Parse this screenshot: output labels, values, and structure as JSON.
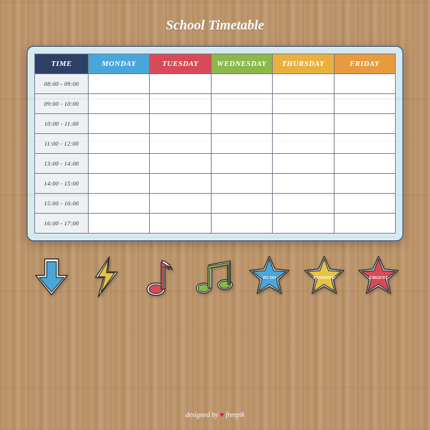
{
  "title": "School Timetable",
  "footer": {
    "prefix": "designed by",
    "heart": "♥",
    "brand": "freepik"
  },
  "colors": {
    "time_header_bg": "#2f4066",
    "day_header_bg": [
      "#4aa6d8",
      "#d84a57",
      "#8bb84a",
      "#e8b13f",
      "#e89a3f"
    ],
    "card_bg": "#d6e9f0",
    "card_border": "#2c3e6e",
    "cell_border": "#707a88",
    "time_cell_bg": "#eef1f4",
    "sticker_outline": "#2b2b2b",
    "sticker_white": "#ffffff"
  },
  "table": {
    "time_header": "TIME",
    "days": [
      "MONDAY",
      "TUESDAY",
      "WEDNESDAY",
      "THURSDAY",
      "FRIDAY"
    ],
    "time_slots": [
      "08:00 - 09:00",
      "09:00 - 10:00",
      "10:00 - 11:00",
      "11:00 - 12:00",
      "13:00 - 14:00",
      "14:00 - 15:00",
      "15:00 - 16:00",
      "16:00 - 17:00"
    ],
    "cells": [
      [
        "",
        "",
        "",
        "",
        ""
      ],
      [
        "",
        "",
        "",
        "",
        ""
      ],
      [
        "",
        "",
        "",
        "",
        ""
      ],
      [
        "",
        "",
        "",
        "",
        ""
      ],
      [
        "",
        "",
        "",
        "",
        ""
      ],
      [
        "",
        "",
        "",
        "",
        ""
      ],
      [
        "",
        "",
        "",
        "",
        ""
      ],
      [
        "",
        "",
        "",
        "",
        ""
      ]
    ]
  },
  "stickers": [
    {
      "type": "arrow",
      "name": "arrow-down-icon",
      "fill": "#4aa6d8",
      "label": ""
    },
    {
      "type": "bolt",
      "name": "lightning-icon",
      "fill": "#e8c33f",
      "label": ""
    },
    {
      "type": "note",
      "name": "music-note-icon",
      "fill": "#d84a57",
      "label": ""
    },
    {
      "type": "notes",
      "name": "music-notes-icon",
      "fill": "#8bb84a",
      "label": ""
    },
    {
      "type": "star",
      "name": "star-todo-icon",
      "fill": "#4aa6d8",
      "label": "TO DO"
    },
    {
      "type": "star",
      "name": "star-finished-icon",
      "fill": "#e8c33f",
      "label": "FINISHED"
    },
    {
      "type": "star",
      "name": "star-urgent-icon",
      "fill": "#d84a57",
      "label": "URGENT"
    }
  ]
}
